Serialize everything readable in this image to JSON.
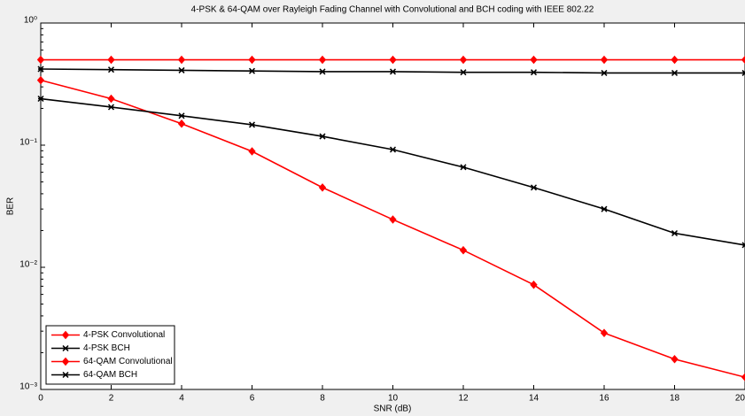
{
  "chart_data": {
    "type": "line",
    "title": "4-PSK & 64-QAM over Rayleigh Fading Channel with Convolutional and BCH coding with IEEE 802.22",
    "xlabel": "SNR (dB)",
    "ylabel": "BER",
    "x": [
      0,
      2,
      4,
      6,
      8,
      10,
      12,
      14,
      16,
      18,
      20
    ],
    "xlim": [
      0,
      20
    ],
    "xticks": [
      0,
      2,
      4,
      6,
      8,
      10,
      12,
      14,
      16,
      18,
      20
    ],
    "ylim": [
      0.001,
      1
    ],
    "log_y": true,
    "yticks": [
      {
        "value": 0.001,
        "label": "10⁻³"
      },
      {
        "value": 0.01,
        "label": "10⁻²"
      },
      {
        "value": 0.1,
        "label": "10⁻¹"
      },
      {
        "value": 1,
        "label": "10⁰"
      }
    ],
    "grid": false,
    "legend": "lower left",
    "series": [
      {
        "name": "4-PSK Convolutional",
        "color": "#ff0000",
        "marker": "diamond",
        "values": [
          0.5,
          0.5,
          0.5,
          0.5,
          0.5,
          0.5,
          0.5,
          0.5,
          0.5,
          0.5,
          0.5
        ]
      },
      {
        "name": "4-PSK BCH",
        "color": "#000000",
        "marker": "x",
        "values": [
          0.42,
          0.415,
          0.41,
          0.405,
          0.4,
          0.4,
          0.395,
          0.395,
          0.39,
          0.39,
          0.39
        ]
      },
      {
        "name": "64-QAM Convolutional",
        "color": "#ff0000",
        "marker": "diamond",
        "values": [
          0.34,
          0.24,
          0.15,
          0.089,
          0.045,
          0.0246,
          0.0138,
          0.0072,
          0.0029,
          0.00177,
          0.00126
        ]
      },
      {
        "name": "64-QAM BCH",
        "color": "#000000",
        "marker": "x",
        "values": [
          0.24,
          0.205,
          0.174,
          0.147,
          0.118,
          0.092,
          0.066,
          0.045,
          0.03,
          0.019,
          0.0152
        ]
      }
    ]
  }
}
